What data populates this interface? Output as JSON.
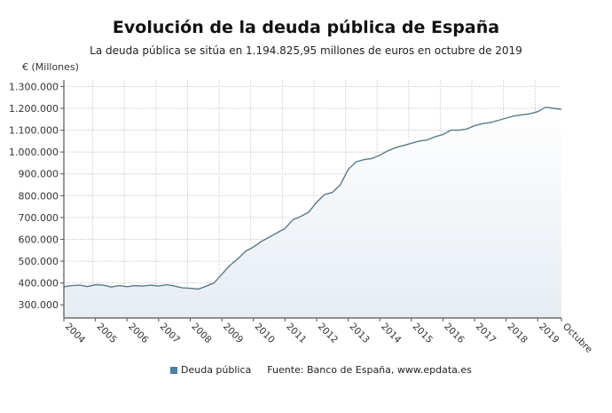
{
  "colors": {
    "line": "#5a7a8c",
    "fill_top": "#ffffff",
    "fill_bottom": "#e6edf3",
    "legend": "#4f7fa3"
  },
  "chart_data": {
    "type": "area",
    "title": "Evolución de la deuda pública de España",
    "subtitle": "La deuda pública se sitúa en 1.194.825,95 millones de euros en octubre de 2019",
    "ylabel": "€ (Millones)",
    "xlabel": "",
    "ylim": [
      240000,
      1330000
    ],
    "xlim": [
      "2004-01",
      "2019-10"
    ],
    "grid": true,
    "legend_position": "bottom",
    "yticks": [
      300000,
      400000,
      500000,
      600000,
      700000,
      800000,
      900000,
      1000000,
      1100000,
      1200000,
      1300000
    ],
    "ytick_labels": [
      "300.000",
      "400.000",
      "500.000",
      "600.000",
      "700.000",
      "800.000",
      "900.000",
      "1.000.000",
      "1.100.000",
      "1.200.000",
      "1.300.000"
    ],
    "xticks": [
      "2004-01",
      "2005-01",
      "2006-01",
      "2007-01",
      "2008-01",
      "2009-01",
      "2010-01",
      "2011-01",
      "2012-01",
      "2013-01",
      "2014-01",
      "2015-01",
      "2016-01",
      "2017-01",
      "2018-01",
      "2019-01",
      "2019-10"
    ],
    "xtick_labels": [
      "2004",
      "2005",
      "2006",
      "2007",
      "2008",
      "2009",
      "2010",
      "2011",
      "2012",
      "2013",
      "2014",
      "2015",
      "2016",
      "2017",
      "2018",
      "2019",
      "Octubre"
    ],
    "series": [
      {
        "name": "Deuda pública",
        "x": [
          "2004-01",
          "2004-04",
          "2004-07",
          "2004-10",
          "2005-01",
          "2005-04",
          "2005-07",
          "2005-10",
          "2006-01",
          "2006-04",
          "2006-07",
          "2006-10",
          "2007-01",
          "2007-04",
          "2007-07",
          "2007-10",
          "2008-01",
          "2008-04",
          "2008-07",
          "2008-10",
          "2009-01",
          "2009-04",
          "2009-07",
          "2009-10",
          "2010-01",
          "2010-04",
          "2010-07",
          "2010-10",
          "2011-01",
          "2011-04",
          "2011-07",
          "2011-10",
          "2012-01",
          "2012-04",
          "2012-07",
          "2012-10",
          "2013-01",
          "2013-04",
          "2013-07",
          "2013-10",
          "2014-01",
          "2014-04",
          "2014-07",
          "2014-10",
          "2015-01",
          "2015-04",
          "2015-07",
          "2015-10",
          "2016-01",
          "2016-04",
          "2016-07",
          "2016-10",
          "2017-01",
          "2017-04",
          "2017-07",
          "2017-10",
          "2018-01",
          "2018-04",
          "2018-07",
          "2018-10",
          "2019-01",
          "2019-04",
          "2019-07",
          "2019-10"
        ],
        "values": [
          383000,
          388000,
          390000,
          384000,
          392000,
          390000,
          382000,
          388000,
          383000,
          388000,
          386000,
          390000,
          386000,
          392000,
          386000,
          378000,
          376000,
          372000,
          385000,
          400000,
          440000,
          480000,
          510000,
          545000,
          565000,
          590000,
          610000,
          630000,
          650000,
          690000,
          705000,
          725000,
          770000,
          805000,
          815000,
          850000,
          920000,
          955000,
          965000,
          970000,
          985000,
          1005000,
          1020000,
          1030000,
          1040000,
          1050000,
          1055000,
          1070000,
          1080000,
          1100000,
          1100000,
          1105000,
          1120000,
          1130000,
          1135000,
          1145000,
          1155000,
          1165000,
          1170000,
          1175000,
          1185000,
          1205000,
          1200000,
          1194826
        ]
      }
    ],
    "source": "Fuente: Banco de España, www.epdata.es"
  }
}
